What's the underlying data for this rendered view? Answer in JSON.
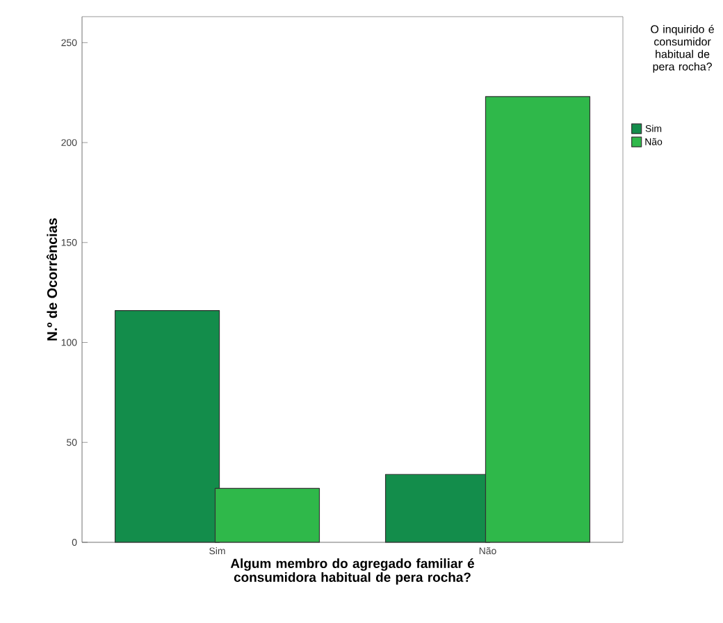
{
  "chart_data": {
    "type": "bar",
    "xlabel": "Algum membro do agregado familiar é consumidora habitual de pera rocha?",
    "ylabel": "N.º de Ocorrências",
    "legend_title": "O inquirido é consumidor habitual de pera rocha?",
    "categories": [
      "Sim",
      "Não"
    ],
    "series": [
      {
        "name": "Sim",
        "color": "#138d4b",
        "values": [
          116,
          34
        ]
      },
      {
        "name": "Não",
        "color": "#2fb84a",
        "values": [
          27,
          223
        ]
      }
    ],
    "ylim": [
      0,
      263
    ],
    "yticks": [
      0,
      50,
      100,
      150,
      200,
      250
    ],
    "grid": false,
    "legend": "top right"
  }
}
